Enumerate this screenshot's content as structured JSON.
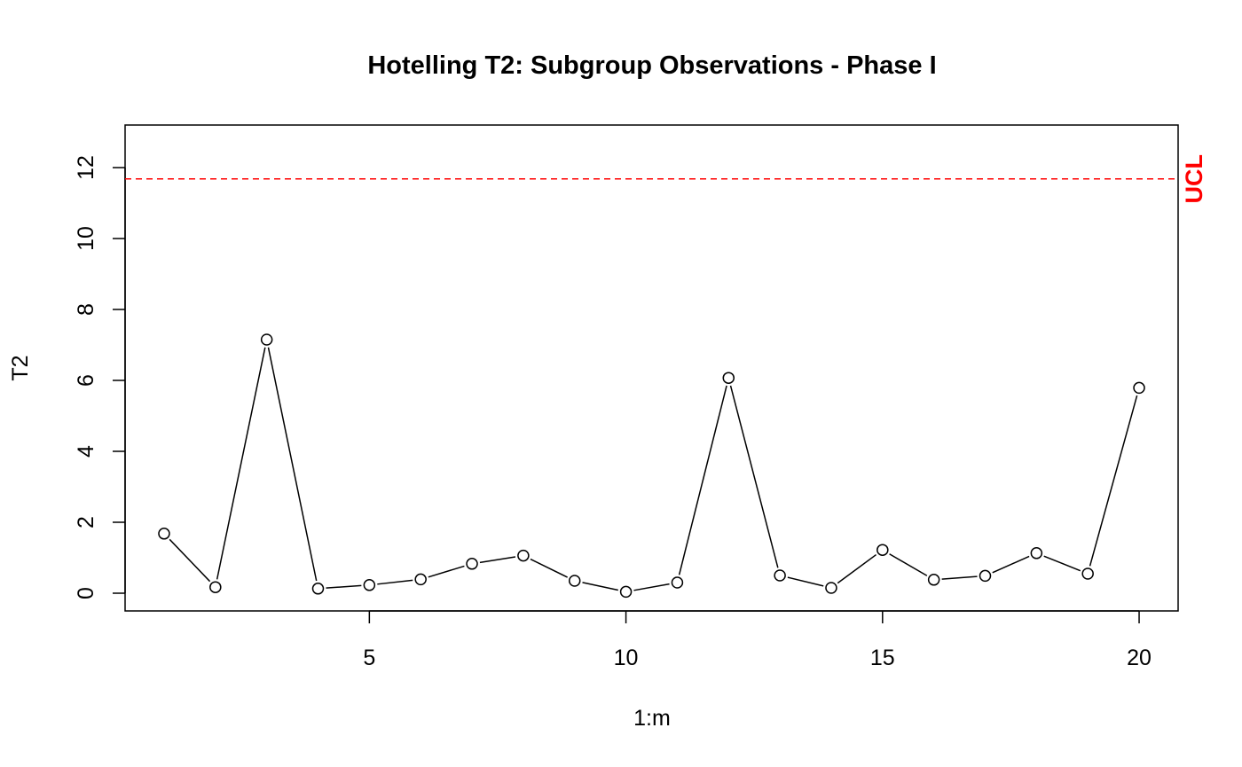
{
  "chart_data": {
    "type": "line",
    "title": "Hotelling T2: Subgroup Observations - Phase I",
    "xlabel": "1:m",
    "ylabel": "T2",
    "x": [
      1,
      2,
      3,
      4,
      5,
      6,
      7,
      8,
      9,
      10,
      11,
      12,
      13,
      14,
      15,
      16,
      17,
      18,
      19,
      20
    ],
    "series": [
      {
        "values": [
          1.68,
          0.17,
          7.15,
          0.13,
          0.23,
          0.39,
          0.83,
          1.06,
          0.35,
          0.04,
          0.3,
          6.07,
          0.5,
          0.15,
          1.22,
          0.38,
          0.49,
          1.13,
          0.55,
          5.79
        ],
        "marker": "open-circle",
        "line": "solid",
        "color": "#000000"
      }
    ],
    "xlim": [
      0.24,
      20.76
    ],
    "ylim": [
      -0.5,
      13.2
    ],
    "xticks": [
      5,
      10,
      15,
      20
    ],
    "xtick_labels": [
      "5",
      "10",
      "15",
      "20"
    ],
    "yticks": [
      0,
      2,
      4,
      6,
      8,
      10,
      12
    ],
    "ytick_labels": [
      "0",
      "2",
      "4",
      "6",
      "8",
      "10",
      "12"
    ],
    "reference_lines": [
      {
        "label": "UCL",
        "value": 11.68,
        "color": "#ff0000",
        "style": "dashed"
      }
    ],
    "grid": false,
    "legend": "none"
  }
}
